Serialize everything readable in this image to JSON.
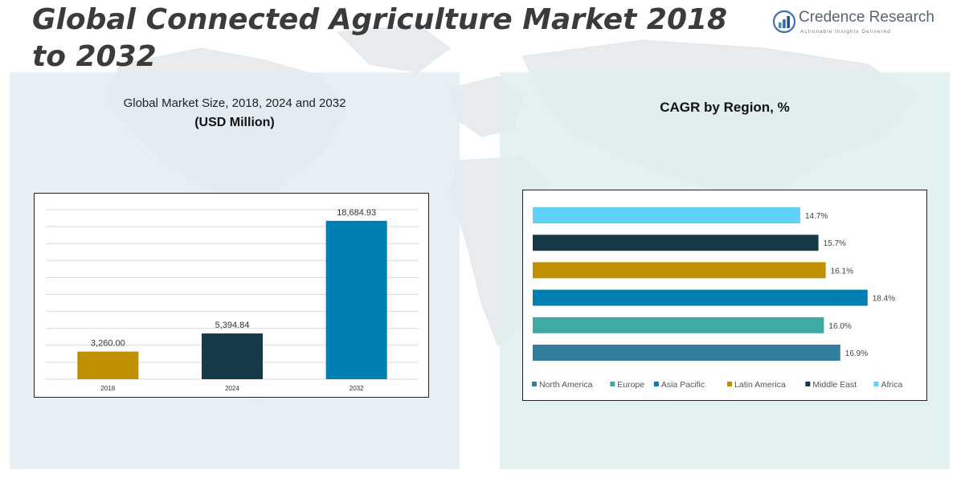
{
  "header": {
    "title": "Global Connected Agriculture Market 2018 to 2032",
    "brand_name": "Credence Research",
    "brand_tagline": "Actionable Insights Delivered"
  },
  "colors": {
    "gold": "#c09000",
    "dark_navy": "#173a48",
    "blue": "#0080b2",
    "steel_blue": "#2f7f9c",
    "teal": "#3fa9a4",
    "sky_blue": "#61d2f7"
  },
  "chart_data": [
    {
      "type": "bar",
      "title": "Global Market Size, 2018, 2024 and 2032",
      "subtitle": "(USD Million)",
      "categories": [
        "2018",
        "2024",
        "2032"
      ],
      "values": [
        3260.0,
        5394.84,
        18684.93
      ],
      "value_labels": [
        "3,260.00",
        "5,394.84",
        "18,684.93"
      ],
      "bar_colors": [
        "#c09000",
        "#173a48",
        "#0080b2"
      ],
      "ylim": [
        0,
        20000
      ],
      "grid": true,
      "xlabel": "",
      "ylabel": ""
    },
    {
      "type": "bar",
      "orientation": "horizontal",
      "title": "CAGR by Region, %",
      "categories": [
        "North America",
        "Europe",
        "Asia Pacific",
        "Latin America",
        "Middle East",
        "Africa"
      ],
      "values": [
        16.9,
        16.0,
        18.4,
        16.1,
        15.7,
        14.7
      ],
      "value_labels": [
        "16.9%",
        "16.0%",
        "18.4%",
        "16.1%",
        "15.7%",
        "14.7%"
      ],
      "bar_colors": [
        "#2f7f9c",
        "#3fa9a4",
        "#0080b2",
        "#c09000",
        "#173a48",
        "#61d2f7"
      ],
      "xlim": [
        0,
        20
      ],
      "legend_position": "bottom"
    }
  ]
}
